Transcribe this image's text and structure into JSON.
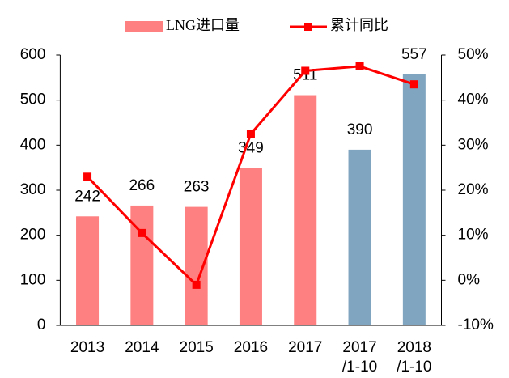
{
  "chart_data": {
    "type": "bar-line",
    "categories": [
      "2013",
      "2014",
      "2015",
      "2016",
      "2017",
      "2017\n/1-10",
      "2018\n/1-10"
    ],
    "series": [
      {
        "name": "LNG进口量",
        "type": "bar",
        "color": "#ff8080",
        "colors": [
          "#ff8080",
          "#ff8080",
          "#ff8080",
          "#ff8080",
          "#ff8080",
          "#7fa5c0",
          "#7fa5c0"
        ],
        "values": [
          242,
          266,
          263,
          349,
          511,
          390,
          557
        ]
      },
      {
        "name": "累计同比",
        "type": "line",
        "axis": "y2",
        "color": "#ff0000",
        "values": [
          23,
          10.5,
          -1,
          32.5,
          46.5,
          47.5,
          43.5
        ]
      }
    ],
    "ylim": [
      0,
      600
    ],
    "yticks": [
      0,
      100,
      200,
      300,
      400,
      500,
      600
    ],
    "y2lim": [
      -10,
      50
    ],
    "y2ticks": [
      {
        "value": -10,
        "label": "-10%"
      },
      {
        "value": 0,
        "label": "0%"
      },
      {
        "value": 10,
        "label": "10%"
      },
      {
        "value": 20,
        "label": "20%"
      },
      {
        "value": 30,
        "label": "30%"
      },
      {
        "value": 40,
        "label": "40%"
      },
      {
        "value": 50,
        "label": "50%"
      }
    ],
    "grid": false,
    "legend": "top"
  }
}
